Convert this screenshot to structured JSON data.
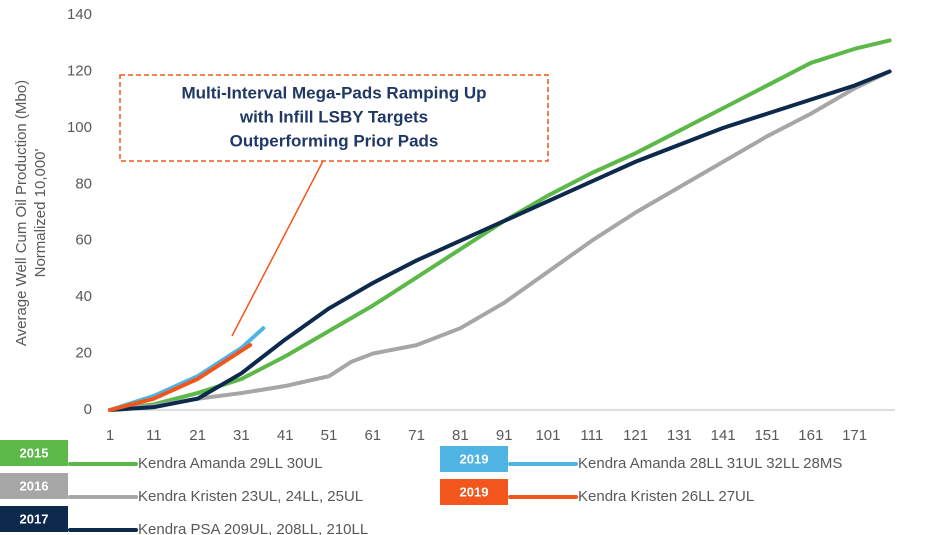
{
  "chart_data": {
    "type": "line",
    "ylabel": [
      "Average Well Cum Oil Production (Mbo)",
      "Normalized 10,000'"
    ],
    "annotation": [
      "Multi-Interval Mega-Pads Ramping Up",
      "with Infill LSBY Targets",
      "Outperforming Prior Pads"
    ],
    "xlim": [
      1,
      180
    ],
    "xticks": [
      1,
      11,
      21,
      31,
      41,
      51,
      61,
      71,
      81,
      91,
      101,
      111,
      121,
      131,
      141,
      151,
      161,
      171
    ],
    "ylim": [
      0,
      140
    ],
    "yticks": [
      0,
      20,
      40,
      60,
      80,
      100,
      120,
      140
    ],
    "grid": false,
    "series": [
      {
        "name": "Kendra Amanda 29LL 30UL",
        "tag": "2015",
        "color": "#5cb848",
        "x": [
          1,
          11,
          21,
          31,
          41,
          51,
          61,
          71,
          81,
          91,
          101,
          111,
          121,
          131,
          141,
          151,
          161,
          171,
          179
        ],
        "values": [
          0,
          2,
          6,
          11,
          19,
          28,
          37,
          47,
          57,
          67,
          76,
          84,
          91,
          99,
          107,
          115,
          123,
          128,
          131
        ]
      },
      {
        "name": "Kendra Kristen 23UL, 24LL, 25UL",
        "tag": "2016",
        "color": "#a6a6a6",
        "x": [
          1,
          11,
          21,
          31,
          41,
          51,
          56,
          61,
          71,
          81,
          91,
          101,
          111,
          121,
          131,
          141,
          151,
          161,
          171,
          179
        ],
        "values": [
          0,
          1.5,
          4,
          6,
          8.5,
          12,
          17,
          20,
          23,
          29,
          38,
          49,
          60,
          70,
          79,
          88,
          97,
          105,
          114,
          120
        ]
      },
      {
        "name": "Kendra PSA 209UL, 208LL, 210LL",
        "tag": "2017",
        "color": "#0d2a4d",
        "x": [
          1,
          11,
          21,
          31,
          41,
          51,
          61,
          71,
          81,
          91,
          101,
          111,
          121,
          131,
          141,
          151,
          161,
          171,
          179
        ],
        "values": [
          0,
          1,
          4,
          13,
          25,
          36,
          45,
          53,
          60,
          67,
          74,
          81,
          88,
          94,
          100,
          105,
          110,
          115,
          120
        ]
      },
      {
        "name": "Kendra Amanda 28LL 31UL 32LL 28MS",
        "tag": "2019",
        "color": "#4fb3e3",
        "x": [
          1,
          11,
          21,
          31,
          36
        ],
        "values": [
          0,
          5,
          12,
          22,
          29
        ]
      },
      {
        "name": "Kendra Kristen 26LL 27UL",
        "tag": "2019",
        "color": "#f2561d",
        "x": [
          1,
          11,
          21,
          31,
          33
        ],
        "values": [
          0,
          4,
          11,
          21,
          23
        ]
      }
    ]
  }
}
